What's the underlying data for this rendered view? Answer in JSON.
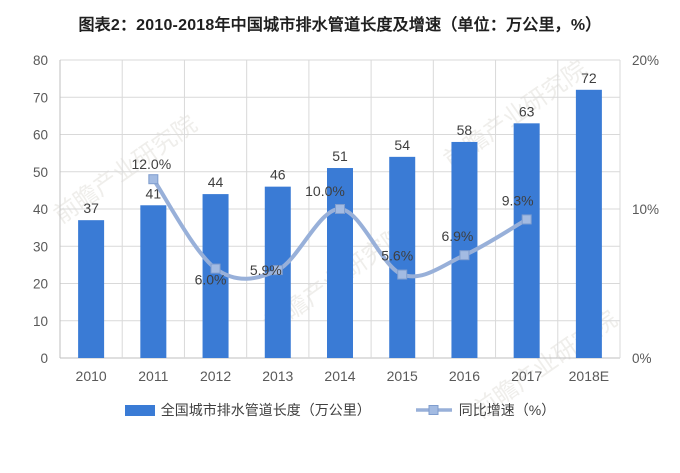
{
  "title": "图表2：2010-2018年中国城市排水管道长度及增速（单位：万公里，%）",
  "watermark": "前瞻产业研究院",
  "legend": {
    "bar_label": "全国城市排水管道长度（万公里）",
    "line_label": "同比增速（%）"
  },
  "colors": {
    "bar": "#3a7bd5",
    "line": "#98b0d9",
    "marker_fill": "#a3bbe2",
    "marker_stroke": "#7f9dce",
    "grid": "#d9d9d9",
    "axis": "#bfbfbf",
    "tick_text": "#595959",
    "value_text": "#3f3f3f"
  },
  "chart_data": {
    "type": "bar",
    "subtype": "bar+line combo, dual axis",
    "title": "图表2：2010-2018年中国城市排水管道长度及增速（单位：万公里，%）",
    "categories": [
      "2010",
      "2011",
      "2012",
      "2013",
      "2014",
      "2015",
      "2016",
      "2017",
      "2018E"
    ],
    "series": [
      {
        "name": "全国城市排水管道长度（万公里）",
        "type": "bar",
        "axis": "left",
        "color": "#3a7bd5",
        "values": [
          37,
          41,
          44,
          46,
          51,
          54,
          58,
          63,
          72
        ]
      },
      {
        "name": "同比增速（%）",
        "type": "line",
        "axis": "right",
        "color": "#98b0d9",
        "smooth": true,
        "values": [
          null,
          12.0,
          6.0,
          5.9,
          10.0,
          5.6,
          6.9,
          9.3,
          null
        ],
        "point_labels": [
          "",
          "12.0%",
          "6.0%",
          "5.9%",
          "10.0%",
          "5.6%",
          "6.9%",
          "9.3%",
          ""
        ]
      }
    ],
    "left_axis": {
      "min": 0,
      "max": 80,
      "tick_labels": [
        "0",
        "10",
        "20",
        "30",
        "40",
        "50",
        "60",
        "70",
        "80"
      ]
    },
    "right_axis": {
      "min": 0,
      "max": 20,
      "ticks": [
        {
          "label": "0%",
          "value": 0
        },
        {
          "label": "10%",
          "value": 10
        },
        {
          "label": "20%",
          "value": 20
        }
      ]
    },
    "grid": true,
    "legend_position": "bottom"
  }
}
